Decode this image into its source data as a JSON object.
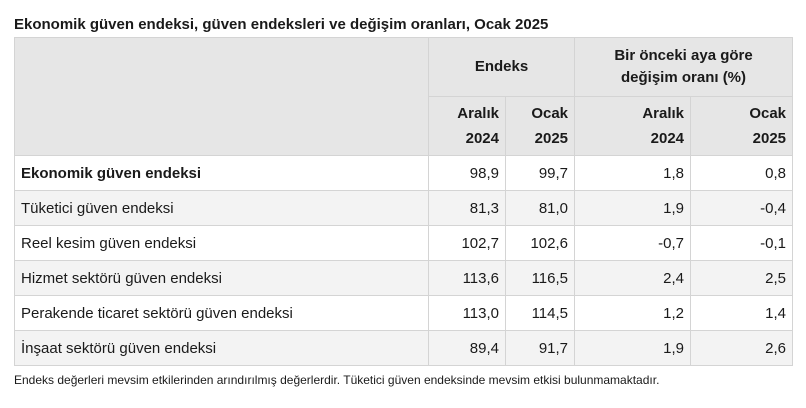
{
  "title": "Ekonomik güven endeksi, güven endeksleri ve değişim oranları, Ocak 2025",
  "header": {
    "group_index": "Endeks",
    "group_change_line1": "Bir önceki aya göre",
    "group_change_line2": "değişim oranı (%)",
    "cols": [
      {
        "month": "Aralık",
        "year": "2024"
      },
      {
        "month": "Ocak",
        "year": "2025"
      },
      {
        "month": "Aralık",
        "year": "2024"
      },
      {
        "month": "Ocak",
        "year": "2025"
      }
    ]
  },
  "rows": [
    {
      "label": "Ekonomik güven endeksi",
      "values": [
        "98,9",
        "99,7",
        "1,8",
        "0,8"
      ]
    },
    {
      "label": "Tüketici güven endeksi",
      "values": [
        "81,3",
        "81,0",
        "1,9",
        "-0,4"
      ]
    },
    {
      "label": "Reel kesim güven endeksi",
      "values": [
        "102,7",
        "102,6",
        "-0,7",
        "-0,1"
      ]
    },
    {
      "label": "Hizmet sektörü güven endeksi",
      "values": [
        "113,6",
        "116,5",
        "2,4",
        "2,5"
      ]
    },
    {
      "label": "Perakende ticaret sektörü güven endeksi",
      "values": [
        "113,0",
        "114,5",
        "1,2",
        "1,4"
      ]
    },
    {
      "label": "İnşaat sektörü güven endeksi",
      "values": [
        "89,4",
        "91,7",
        "1,9",
        "2,6"
      ]
    }
  ],
  "footnote": "Endeks değerleri mevsim etkilerinden arındırılmış değerlerdir. Tüketici güven endeksinde mevsim etkisi bulunmamaktadır."
}
